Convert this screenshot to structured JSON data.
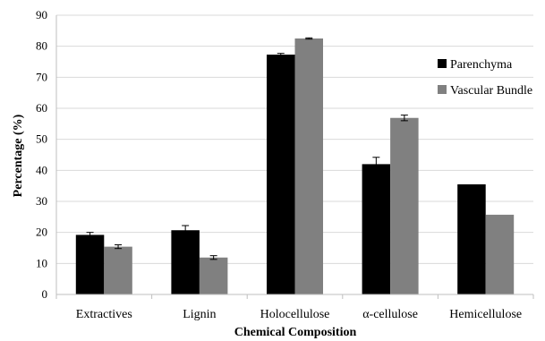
{
  "chart_data": {
    "type": "bar",
    "title": "",
    "xlabel": "Chemical Composition",
    "ylabel": "Percentage (%)",
    "ylim": [
      0,
      90
    ],
    "yticks": [
      0,
      10,
      20,
      30,
      40,
      50,
      60,
      70,
      80,
      90
    ],
    "grid": true,
    "legend_position": "right",
    "categories": [
      "Extractives",
      "Lignin",
      "Holocellulose",
      "α-cellulose",
      "Hemicellulose"
    ],
    "series": [
      {
        "name": "Parenchyma",
        "color": "#000000",
        "values": [
          19.2,
          20.7,
          77.3,
          42.0,
          35.5
        ],
        "errors": [
          0.8,
          1.5,
          0.4,
          2.2,
          0
        ]
      },
      {
        "name": "Vascular Bundle",
        "color": "#808080",
        "values": [
          15.4,
          11.9,
          82.5,
          56.9,
          25.7
        ],
        "errors": [
          0.6,
          0.6,
          0.2,
          0.9,
          0
        ]
      }
    ]
  }
}
